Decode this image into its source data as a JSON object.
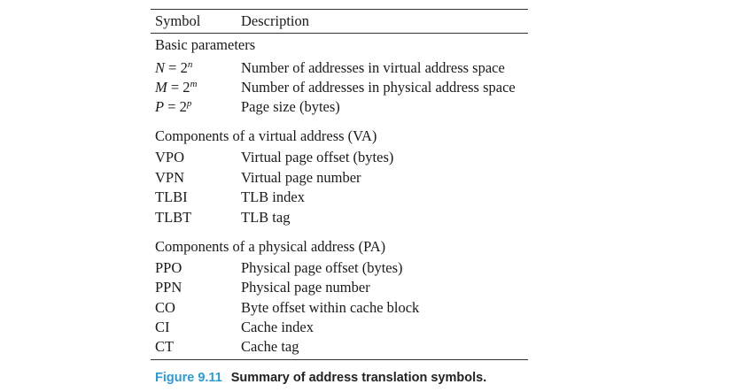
{
  "header": {
    "symbol": "Symbol",
    "description": "Description"
  },
  "sections": [
    {
      "title": "Basic parameters",
      "rows": [
        {
          "var": "N",
          "eq": " = 2",
          "exp": "n",
          "description": "Number of addresses in virtual address space"
        },
        {
          "var": "M",
          "eq": " = 2",
          "exp": "m",
          "description": "Number of addresses in physical address space"
        },
        {
          "var": "P",
          "eq": " = 2",
          "exp": "p",
          "description": "Page size (bytes)"
        }
      ]
    },
    {
      "title": "Components of a virtual address (VA)",
      "rows": [
        {
          "symbol": "VPO",
          "description": "Virtual page offset (bytes)"
        },
        {
          "symbol": "VPN",
          "description": "Virtual page number"
        },
        {
          "symbol": "TLBI",
          "description": "TLB index"
        },
        {
          "symbol": "TLBT",
          "description": "TLB tag"
        }
      ]
    },
    {
      "title": "Components of a physical address (PA)",
      "rows": [
        {
          "symbol": "PPO",
          "description": "Physical page offset (bytes)"
        },
        {
          "symbol": "PPN",
          "description": "Physical page number"
        },
        {
          "symbol": "CO",
          "description": "Byte offset within cache block"
        },
        {
          "symbol": "CI",
          "description": "Cache index"
        },
        {
          "symbol": "CT",
          "description": "Cache tag"
        }
      ]
    }
  ],
  "caption": {
    "figure_number": "Figure 9.11",
    "title": "Summary of address translation symbols."
  },
  "colors": {
    "figure_number": "#2e9ad0",
    "text": "#1a1a1a"
  }
}
